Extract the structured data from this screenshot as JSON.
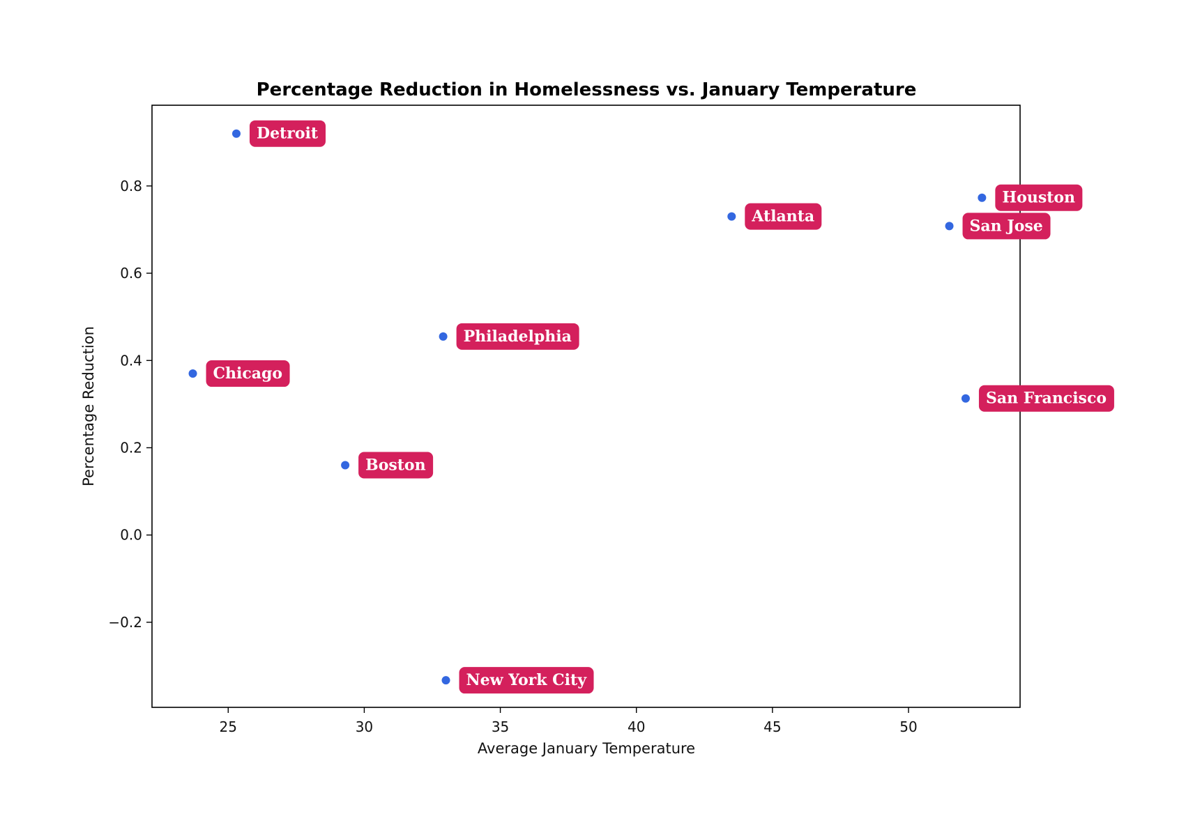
{
  "chart_data": {
    "type": "scatter",
    "title": "Percentage Reduction in Homelessness vs. January Temperature",
    "xlabel": "Average January Temperature",
    "ylabel": "Percentage Reduction",
    "xlim": [
      22.2,
      54.1
    ],
    "ylim": [
      -0.395,
      0.985
    ],
    "xticks": [
      25,
      30,
      35,
      40,
      45,
      50
    ],
    "yticks": [
      -0.2,
      0.0,
      0.2,
      0.4,
      0.6,
      0.8
    ],
    "ytick_labels": [
      "−0.2",
      "0.0",
      "0.2",
      "0.4",
      "0.6",
      "0.8"
    ],
    "grid": false,
    "point_color": "#3367e0",
    "label_bg_color": "#d4205c",
    "label_text_color": "#ffffff",
    "points": [
      {
        "label": "Detroit",
        "x": 25.3,
        "y": 0.92
      },
      {
        "label": "Chicago",
        "x": 23.7,
        "y": 0.37
      },
      {
        "label": "Boston",
        "x": 29.3,
        "y": 0.16
      },
      {
        "label": "Philadelphia",
        "x": 32.9,
        "y": 0.455
      },
      {
        "label": "New York City",
        "x": 33.0,
        "y": -0.333
      },
      {
        "label": "Atlanta",
        "x": 43.5,
        "y": 0.73
      },
      {
        "label": "San Jose",
        "x": 51.5,
        "y": 0.708
      },
      {
        "label": "Houston",
        "x": 52.7,
        "y": 0.773
      },
      {
        "label": "San Francisco",
        "x": 52.1,
        "y": 0.313
      }
    ]
  }
}
